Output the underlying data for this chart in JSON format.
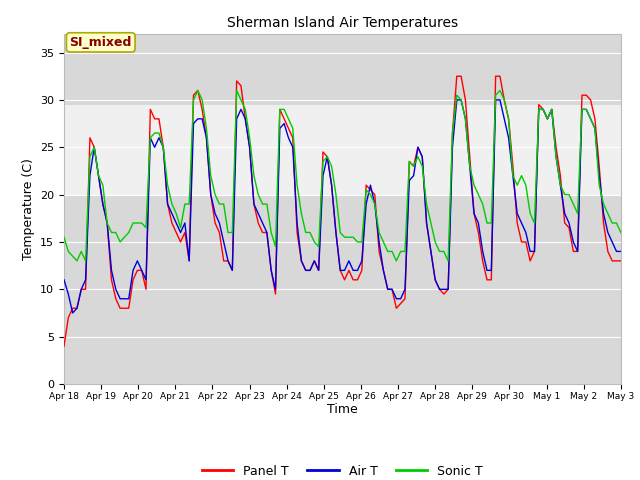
{
  "title": "Sherman Island Air Temperatures",
  "xlabel": "Time",
  "ylabel": "Temperature (C)",
  "ylim": [
    0,
    37
  ],
  "yticks": [
    0,
    5,
    10,
    15,
    20,
    25,
    30,
    35
  ],
  "shaded_band": [
    20,
    29.5
  ],
  "line_colors": {
    "panel": "#ff0000",
    "air": "#0000dd",
    "sonic": "#00cc00"
  },
  "legend_labels": [
    "Panel T",
    "Air T",
    "Sonic T"
  ],
  "annotation_text": "SI_mixed",
  "annotation_color": "#880000",
  "annotation_bg": "#ffffcc",
  "plot_bg": "#d8d8d8",
  "band_bg": "#f0f0f0",
  "xtick_labels": [
    "Apr 18",
    "Apr 19",
    "Apr 20",
    "Apr 21",
    "Apr 22",
    "Apr 23",
    "Apr 24",
    "Apr 25",
    "Apr 26",
    "Apr 27",
    "Apr 28",
    "Apr 29",
    "Apr 30",
    "May 1",
    "May 2",
    "May 3"
  ],
  "panel_T": [
    4,
    7,
    8,
    8,
    10,
    10,
    26,
    25,
    22,
    19,
    17,
    11,
    9,
    8,
    8,
    8,
    11,
    12,
    12,
    10,
    29,
    28,
    28,
    25,
    19,
    17,
    16,
    15,
    16,
    13,
    30.5,
    31,
    29,
    26,
    20,
    17,
    16,
    13,
    13,
    12,
    32,
    31.5,
    28,
    25,
    19,
    17,
    16,
    16,
    12,
    9.5,
    29,
    28,
    27,
    26,
    16,
    13,
    12,
    12,
    13,
    12,
    24.5,
    24,
    21,
    16,
    12,
    11,
    12,
    11,
    11,
    12,
    21,
    20.5,
    20,
    14,
    12,
    10,
    10,
    8,
    8.5,
    9,
    23.5,
    23,
    25,
    24,
    17,
    14,
    11,
    10,
    9.5,
    10,
    26.5,
    32.5,
    32.5,
    30,
    24,
    18,
    16,
    13,
    11,
    11,
    32.5,
    32.5,
    30,
    28,
    23,
    17,
    15,
    15,
    13,
    14,
    29.5,
    29,
    28,
    29,
    25,
    22,
    17,
    16.5,
    14,
    14,
    30.5,
    30.5,
    30,
    28,
    23,
    17,
    14,
    13,
    13,
    13
  ],
  "air_T": [
    11,
    9.5,
    7.5,
    8,
    10,
    11,
    22,
    25,
    22,
    19,
    17,
    12,
    10,
    9,
    9,
    9,
    12,
    13,
    12,
    11,
    26,
    25,
    26,
    25,
    19,
    18,
    17,
    16,
    17,
    13,
    27.5,
    28,
    28,
    26,
    20,
    18,
    17,
    15,
    13,
    12,
    28,
    29,
    28,
    25,
    19,
    18,
    17,
    16,
    12,
    10,
    27,
    27.5,
    26,
    25,
    17,
    13,
    12,
    12,
    13,
    12,
    22,
    24,
    21,
    16,
    12,
    12,
    13,
    12,
    12,
    13,
    19,
    21,
    19,
    15,
    12,
    10,
    10,
    9,
    9,
    10,
    21.5,
    22,
    25,
    24,
    17,
    14,
    11,
    10,
    10,
    10,
    25,
    30,
    30,
    28,
    23,
    18,
    17,
    14,
    12,
    12,
    30,
    30,
    28,
    26,
    22,
    18,
    17,
    16,
    14,
    14,
    29,
    29,
    28,
    29,
    24,
    21,
    18,
    17,
    15,
    14,
    29,
    29,
    28,
    27,
    22,
    18,
    16,
    15,
    14,
    14
  ],
  "sonic_T": [
    15.5,
    14,
    13.5,
    13,
    14,
    13,
    24,
    25,
    22,
    21,
    17,
    16,
    16,
    15,
    15.5,
    16,
    17,
    17,
    17,
    16.5,
    26,
    26.5,
    26.5,
    25,
    21,
    19,
    18,
    16.5,
    19,
    19,
    30,
    31,
    30,
    27,
    22,
    20,
    19,
    19,
    16,
    16,
    31,
    30,
    29,
    26,
    22,
    20,
    19,
    19,
    16,
    14.5,
    29,
    29,
    28,
    27,
    21,
    18,
    16,
    16,
    15,
    14.5,
    23.5,
    24,
    23,
    20,
    16,
    15.5,
    15.5,
    15.5,
    15,
    15,
    20.5,
    20,
    19,
    16,
    15,
    14,
    14,
    13,
    14,
    14,
    23.5,
    23,
    24,
    23,
    19,
    17,
    15,
    14,
    14,
    13,
    26.5,
    30.5,
    30,
    28,
    23,
    21,
    20,
    19,
    17,
    17,
    30.5,
    31,
    30,
    28,
    22,
    21,
    22,
    21,
    18,
    17,
    29,
    29,
    28,
    29,
    24,
    21,
    20,
    20,
    19,
    18,
    29,
    29,
    28,
    27,
    21,
    19,
    18,
    17,
    17,
    16
  ]
}
